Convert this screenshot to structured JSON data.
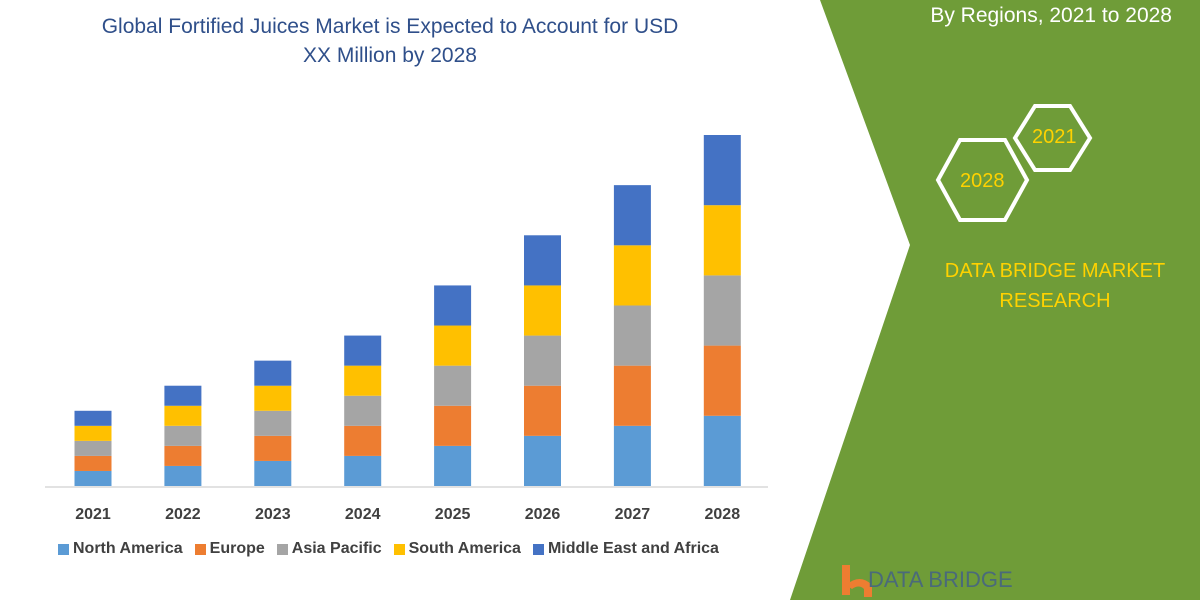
{
  "header": {
    "title_line1": "Global Fortified Juices Market is Expected to Account for USD",
    "title_line2": "XX Million by 2028",
    "subtitle": "By Regions, 2021 to 2028",
    "brand_line1": "DATA BRIDGE MARKET",
    "brand_line2": "RESEARCH",
    "hex_labels": [
      "2021",
      "2028"
    ],
    "logo_text": "DATA BRIDGE"
  },
  "colors": {
    "panel": "#6f9c38",
    "accent": "#ffd200"
  },
  "chart_data": {
    "type": "bar",
    "stacked": true,
    "categories": [
      "2021",
      "2022",
      "2023",
      "2024",
      "2025",
      "2026",
      "2027",
      "2028"
    ],
    "series": [
      {
        "name": "North America",
        "color": "#5b9bd5",
        "values": [
          15,
          20,
          25,
          30,
          40,
          50,
          60,
          70
        ]
      },
      {
        "name": "Europe",
        "color": "#ed7d31",
        "values": [
          15,
          20,
          25,
          30,
          40,
          50,
          60,
          70
        ]
      },
      {
        "name": "Asia Pacific",
        "color": "#a5a5a5",
        "values": [
          15,
          20,
          25,
          30,
          40,
          50,
          60,
          70
        ]
      },
      {
        "name": "South America",
        "color": "#ffc000",
        "values": [
          15,
          20,
          25,
          30,
          40,
          50,
          60,
          70
        ]
      },
      {
        "name": "Middle East and Africa",
        "color": "#4472c4",
        "values": [
          15,
          20,
          25,
          30,
          40,
          50,
          60,
          70
        ]
      }
    ],
    "ylim": [
      0,
      360
    ],
    "grid": false,
    "legend": "bottom"
  }
}
